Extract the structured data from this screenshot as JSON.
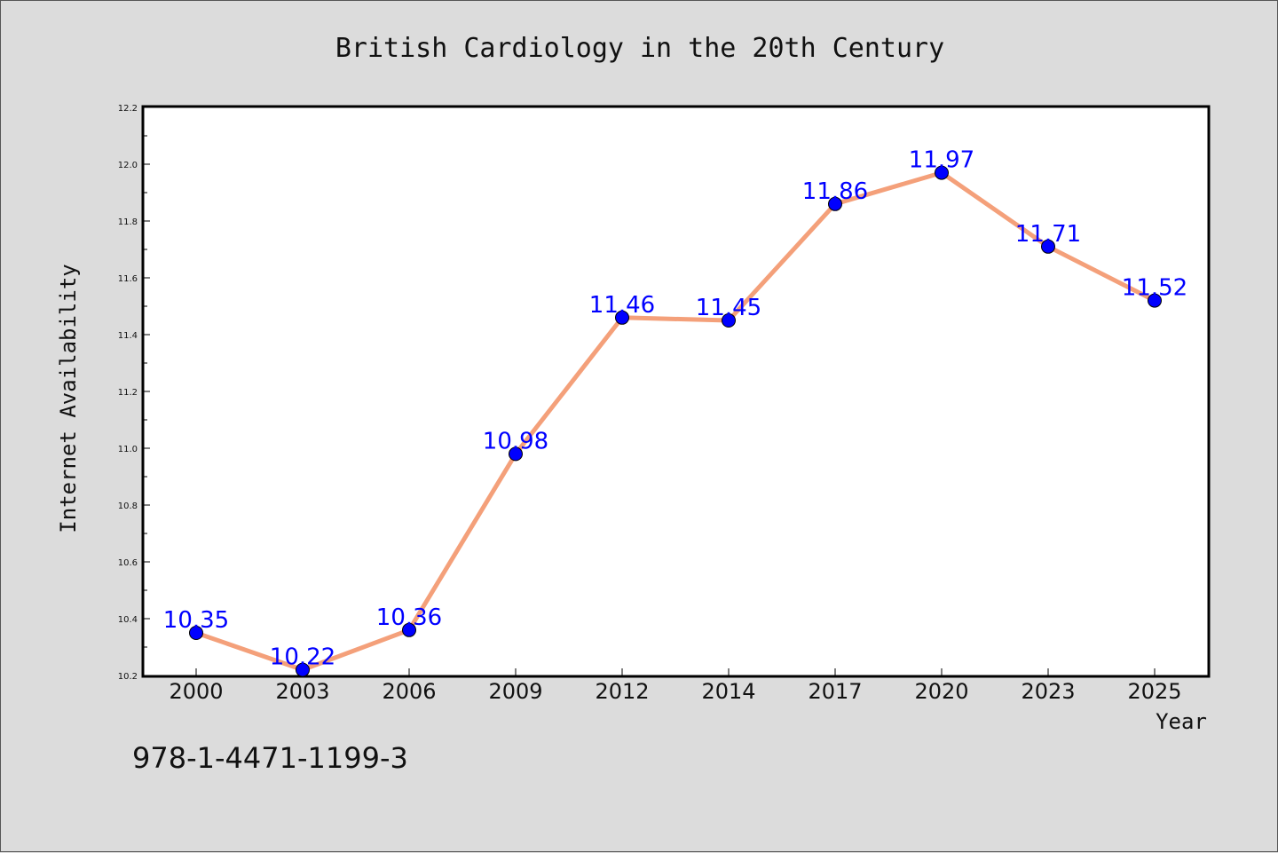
{
  "chart_data": {
    "type": "line",
    "title": "British Cardiology in the 20th Century",
    "xlabel": "Year",
    "ylabel": "Internet Availability",
    "categories": [
      "2000",
      "2003",
      "2006",
      "2009",
      "2012",
      "2014",
      "2017",
      "2020",
      "2023",
      "2025"
    ],
    "series": [
      {
        "values": [
          10.35,
          10.22,
          10.36,
          10.98,
          11.46,
          11.45,
          11.86,
          11.97,
          11.71,
          11.52
        ],
        "labels": [
          "10.35",
          "10.22",
          "10.36",
          "10.98",
          "11.46",
          "11.45",
          "11.86",
          "11.97",
          "11.71",
          "11.52"
        ],
        "line_color": "#f4a07a",
        "marker_color": "#0000ff"
      }
    ],
    "ylim": [
      10.2,
      12.2
    ],
    "yticks": [
      "10.2",
      "10.4",
      "10.6",
      "10.8",
      "11.0",
      "11.2",
      "11.4",
      "11.6",
      "11.8",
      "12.0",
      "12.2"
    ],
    "grid": false,
    "label_color": "#0000ff"
  },
  "footer_text": "978-1-4471-1199-3"
}
